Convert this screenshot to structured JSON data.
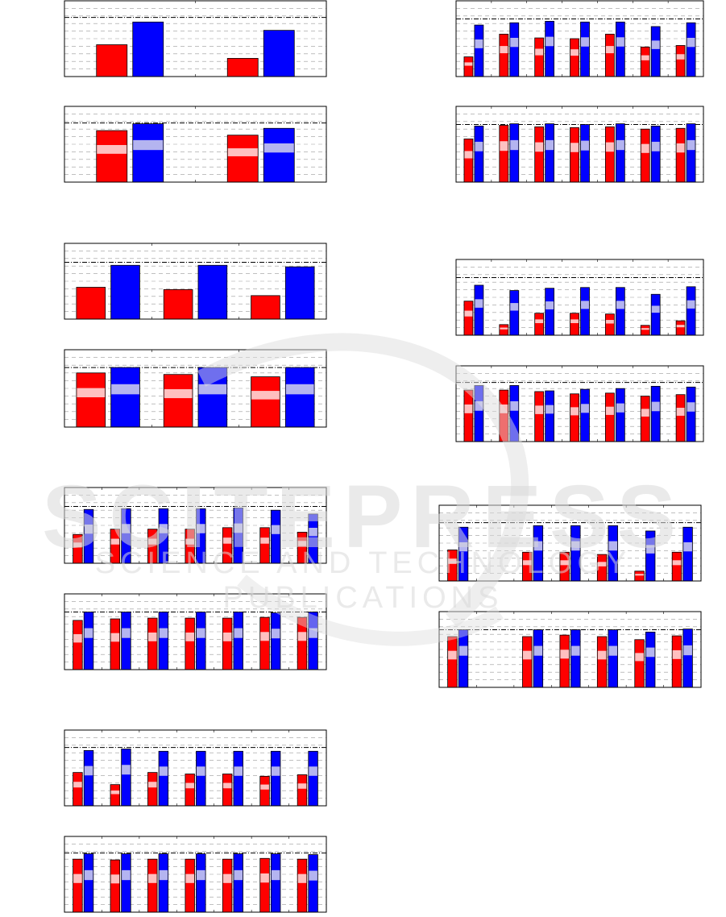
{
  "colors": {
    "red": "#ff0000",
    "blue": "#0000ff",
    "bandRed": "#ffc0c0",
    "bandBlue": "#b4b4f0",
    "grid": "#9a9a9a",
    "frame": "#000000"
  },
  "watermark": {
    "main": "SCITEPRESS",
    "sub": "SCIENCE AND TECHNOLOGY PUBLICATIONS",
    "icon": "swoosh-logo-icon"
  },
  "chart_data": [
    {
      "type": "bar",
      "id": "L1",
      "ylim": [
        0,
        1
      ],
      "refline": 0.78,
      "grid": true,
      "band": false,
      "groups": [
        {
          "red": 0.42,
          "blue": 0.72
        },
        {
          "red": 0.24,
          "blue": 0.61
        }
      ]
    },
    {
      "type": "bar",
      "id": "L2",
      "ylim": [
        0,
        1
      ],
      "refline": 0.78,
      "grid": true,
      "band": true,
      "groups": [
        {
          "red": 0.68,
          "blue": 0.77
        },
        {
          "red": 0.62,
          "blue": 0.71
        }
      ]
    },
    {
      "type": "bar",
      "id": "L3",
      "ylim": [
        0,
        1
      ],
      "refline": 0.75,
      "grid": true,
      "band": false,
      "groups": [
        {
          "red": 0.42,
          "blue": 0.71
        },
        {
          "red": 0.39,
          "blue": 0.71
        },
        {
          "red": 0.31,
          "blue": 0.69
        }
      ]
    },
    {
      "type": "bar",
      "id": "L4",
      "ylim": [
        0,
        1
      ],
      "refline": 0.77,
      "grid": true,
      "band": true,
      "groups": [
        {
          "red": 0.7,
          "blue": 0.77
        },
        {
          "red": 0.68,
          "blue": 0.77
        },
        {
          "red": 0.65,
          "blue": 0.77
        }
      ]
    },
    {
      "type": "bar",
      "id": "L5",
      "ylim": [
        0,
        1
      ],
      "refline": 0.75,
      "grid": true,
      "band": true,
      "groups": [
        {
          "red": 0.38,
          "blue": 0.71
        },
        {
          "red": 0.45,
          "blue": 0.72
        },
        {
          "red": 0.45,
          "blue": 0.72
        },
        {
          "red": 0.45,
          "blue": 0.72
        },
        {
          "red": 0.47,
          "blue": 0.73
        },
        {
          "red": 0.47,
          "blue": 0.7
        },
        {
          "red": 0.41,
          "blue": 0.65
        }
      ]
    },
    {
      "type": "bar",
      "id": "L6",
      "ylim": [
        0,
        1
      ],
      "refline": 0.76,
      "grid": true,
      "band": true,
      "groups": [
        {
          "red": 0.65,
          "blue": 0.76
        },
        {
          "red": 0.67,
          "blue": 0.76
        },
        {
          "red": 0.68,
          "blue": 0.76
        },
        {
          "red": 0.68,
          "blue": 0.76
        },
        {
          "red": 0.68,
          "blue": 0.76
        },
        {
          "red": 0.69,
          "blue": 0.75
        },
        {
          "red": 0.69,
          "blue": 0.76
        }
      ]
    },
    {
      "type": "bar",
      "id": "L7",
      "ylim": [
        0,
        1
      ],
      "refline": 0.77,
      "grid": true,
      "band": true,
      "groups": [
        {
          "red": 0.44,
          "blue": 0.73
        },
        {
          "red": 0.28,
          "blue": 0.75
        },
        {
          "red": 0.44,
          "blue": 0.72
        },
        {
          "red": 0.42,
          "blue": 0.72
        },
        {
          "red": 0.42,
          "blue": 0.72
        },
        {
          "red": 0.39,
          "blue": 0.72
        },
        {
          "red": 0.41,
          "blue": 0.72
        }
      ]
    },
    {
      "type": "bar",
      "id": "L8",
      "ylim": [
        0,
        1
      ],
      "refline": 0.78,
      "grid": true,
      "band": true,
      "groups": [
        {
          "red": 0.7,
          "blue": 0.77
        },
        {
          "red": 0.69,
          "blue": 0.77
        },
        {
          "red": 0.7,
          "blue": 0.77
        },
        {
          "red": 0.7,
          "blue": 0.77
        },
        {
          "red": 0.7,
          "blue": 0.77
        },
        {
          "red": 0.71,
          "blue": 0.77
        },
        {
          "red": 0.7,
          "blue": 0.76
        }
      ]
    },
    {
      "type": "bar",
      "id": "R1",
      "ylim": [
        0,
        1
      ],
      "refline": 0.76,
      "grid": true,
      "band": true,
      "groups": [
        {
          "red": 0.26,
          "blue": 0.68
        },
        {
          "red": 0.56,
          "blue": 0.71
        },
        {
          "red": 0.51,
          "blue": 0.73
        },
        {
          "red": 0.5,
          "blue": 0.72
        },
        {
          "red": 0.56,
          "blue": 0.72
        },
        {
          "red": 0.39,
          "blue": 0.66
        },
        {
          "red": 0.41,
          "blue": 0.71
        }
      ]
    },
    {
      "type": "bar",
      "id": "R2",
      "ylim": [
        0,
        1
      ],
      "refline": 0.76,
      "grid": true,
      "band": true,
      "groups": [
        {
          "red": 0.57,
          "blue": 0.74
        },
        {
          "red": 0.75,
          "blue": 0.77
        },
        {
          "red": 0.73,
          "blue": 0.77
        },
        {
          "red": 0.72,
          "blue": 0.76
        },
        {
          "red": 0.73,
          "blue": 0.77
        },
        {
          "red": 0.7,
          "blue": 0.74
        },
        {
          "red": 0.71,
          "blue": 0.77
        }
      ]
    },
    {
      "type": "bar",
      "id": "R3",
      "ylim": [
        0,
        1
      ],
      "refline": 0.76,
      "grid": true,
      "band": true,
      "groups": [
        {
          "red": 0.45,
          "blue": 0.66
        },
        {
          "red": 0.14,
          "blue": 0.59
        },
        {
          "red": 0.29,
          "blue": 0.62
        },
        {
          "red": 0.29,
          "blue": 0.63
        },
        {
          "red": 0.28,
          "blue": 0.63
        },
        {
          "red": 0.13,
          "blue": 0.54
        },
        {
          "red": 0.19,
          "blue": 0.64
        }
      ]
    },
    {
      "type": "bar",
      "id": "R4",
      "ylim": [
        0,
        1
      ],
      "refline": 0.78,
      "grid": true,
      "band": true,
      "groups": [
        {
          "red": 0.68,
          "blue": 0.74
        },
        {
          "red": 0.68,
          "blue": 0.74
        },
        {
          "red": 0.66,
          "blue": 0.67
        },
        {
          "red": 0.63,
          "blue": 0.69
        },
        {
          "red": 0.64,
          "blue": 0.7
        },
        {
          "red": 0.6,
          "blue": 0.73
        },
        {
          "red": 0.62,
          "blue": 0.72
        }
      ]
    },
    {
      "type": "bar",
      "id": "R5",
      "ylim": [
        0,
        1
      ],
      "refline": 0.77,
      "grid": true,
      "band": true,
      "groups": [
        {
          "red": 0.41,
          "blue": 0.71
        },
        null,
        {
          "red": 0.38,
          "blue": 0.73
        },
        {
          "red": 0.38,
          "blue": 0.73
        },
        {
          "red": 0.35,
          "blue": 0.73
        },
        {
          "red": 0.13,
          "blue": 0.66
        },
        {
          "red": 0.38,
          "blue": 0.71
        }
      ]
    },
    {
      "type": "bar",
      "id": "R6",
      "ylim": [
        0,
        1
      ],
      "refline": 0.76,
      "grid": true,
      "band": true,
      "groups": [
        {
          "red": 0.67,
          "blue": 0.76
        },
        null,
        {
          "red": 0.67,
          "blue": 0.76
        },
        {
          "red": 0.69,
          "blue": 0.76
        },
        {
          "red": 0.67,
          "blue": 0.76
        },
        {
          "red": 0.63,
          "blue": 0.73
        },
        {
          "red": 0.68,
          "blue": 0.77
        }
      ]
    }
  ]
}
